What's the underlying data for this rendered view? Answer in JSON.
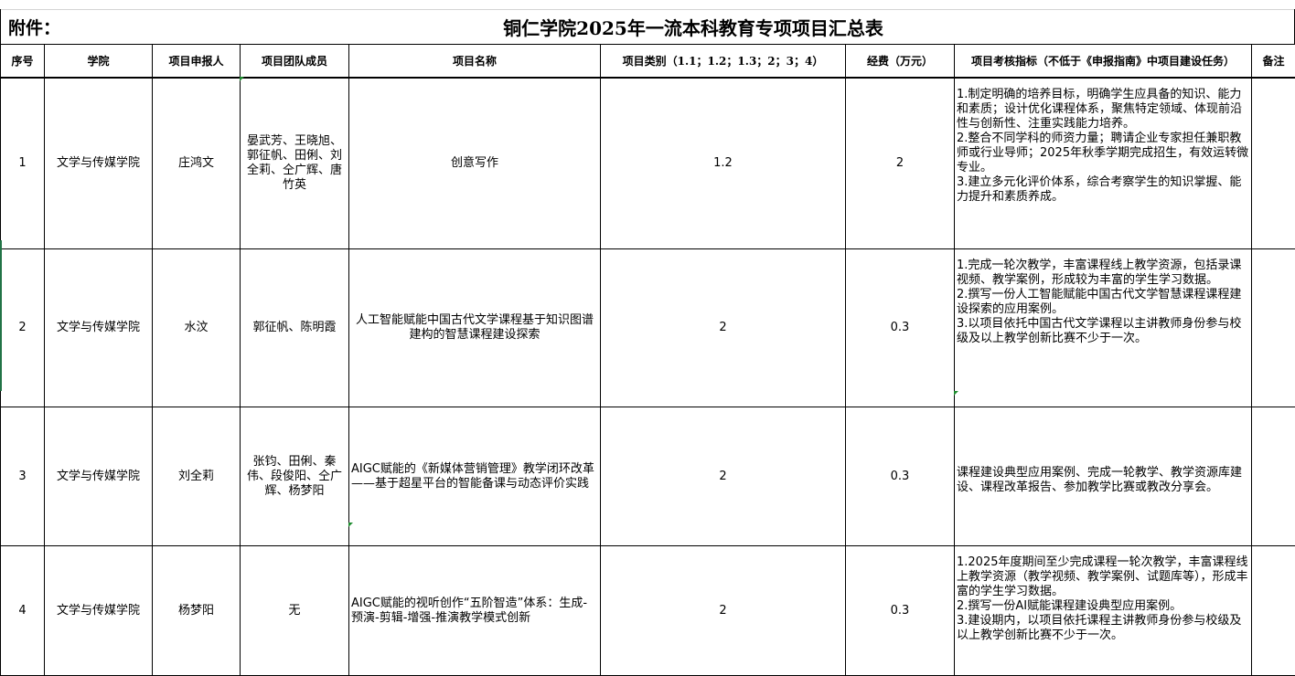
{
  "sheet": {
    "annex_label": "附件：",
    "title": "铜仁学院2025年一流本科教育专项项目汇总表",
    "columns": [
      "序号",
      "学院",
      "项目申报人",
      "项目团队成员",
      "项目名称",
      "项目类别（1.1；1.2；1.3；2；3；4）",
      "经费（万元）",
      "项目考核指标（不低于《申报指南》中项目建设任务）",
      "备注"
    ],
    "rows": [
      {
        "no": "1",
        "college": "文学与传媒学院",
        "applicant": "庄鸿文",
        "team": "晏武芳、王晓旭、郭征帆、田俐、刘全莉、仝广辉、唐竹英",
        "name": "创意写作",
        "category": "1.2",
        "funding": "2",
        "objectives": [
          "1.制定明确的培养目标，明确学生应具备的知识、能力和素质；设计优化课程体系，聚焦特定领域、体现前沿性与创新性、注重实践能力培养。",
          "2.整合不同学科的师资力量；聘请企业专家担任兼职教师或行业导师；2025年秋季学期完成招生，有效运转微专业。",
          "3.建立多元化评价体系，综合考察学生的知识掌握、能力提升和素质养成。"
        ],
        "note": ""
      },
      {
        "no": "2",
        "college": "文学与传媒学院",
        "applicant": "水汶",
        "team": "郭征帆、陈明霞",
        "name": "人工智能赋能中国古代文学课程基于知识图谱建构的智慧课程建设探索",
        "category": "2",
        "funding": "0.3",
        "objectives": [
          "1.完成一轮次教学，丰富课程线上教学资源，包括录课视频、教学案例，形成较为丰富的学生学习数据。",
          "2.撰写一份人工智能赋能中国古代文学智慧课程课程建设探索的应用案例。",
          "3.以项目依托中国古代文学课程以主讲教师身份参与校级及以上教学创新比赛不少于一次。"
        ],
        "note": ""
      },
      {
        "no": "3",
        "college": "文学与传媒学院",
        "applicant": "刘全莉",
        "team": "张钧、田俐、秦伟、段俊阳、仝广辉、杨梦阳",
        "name": "AIGC赋能的《新媒体营销管理》教学闭环改革——基于超星平台的智能备课与动态评价实践",
        "category": "2",
        "funding": "0.3",
        "objectives": [
          "课程建设典型应用案例、完成一轮教学、教学资源库建设、课程改革报告、参加教学比赛或教改分享会。"
        ],
        "note": ""
      },
      {
        "no": "4",
        "college": "文学与传媒学院",
        "applicant": "杨梦阳",
        "team": "无",
        "name": "AIGC赋能的视听创作“五阶智造”体系：生成-预演-剪辑-增强-推演教学模式创新",
        "category": "2",
        "funding": "0.3",
        "objectives": [
          "1.2025年度期间至少完成课程一轮次教学，丰富课程线上教学资源（教学视频、教学案例、试题库等），形成丰富的学生学习数据。",
          "2.撰写一份AI赋能课程建设典型应用案例。",
          "3.建设期内，以项目依托课程主讲教师身份参与校级及以上教学创新比赛不少于一次。"
        ],
        "note": ""
      }
    ]
  },
  "colors": {
    "comment_marker": "#1e8c2f",
    "selection": "#217346"
  }
}
